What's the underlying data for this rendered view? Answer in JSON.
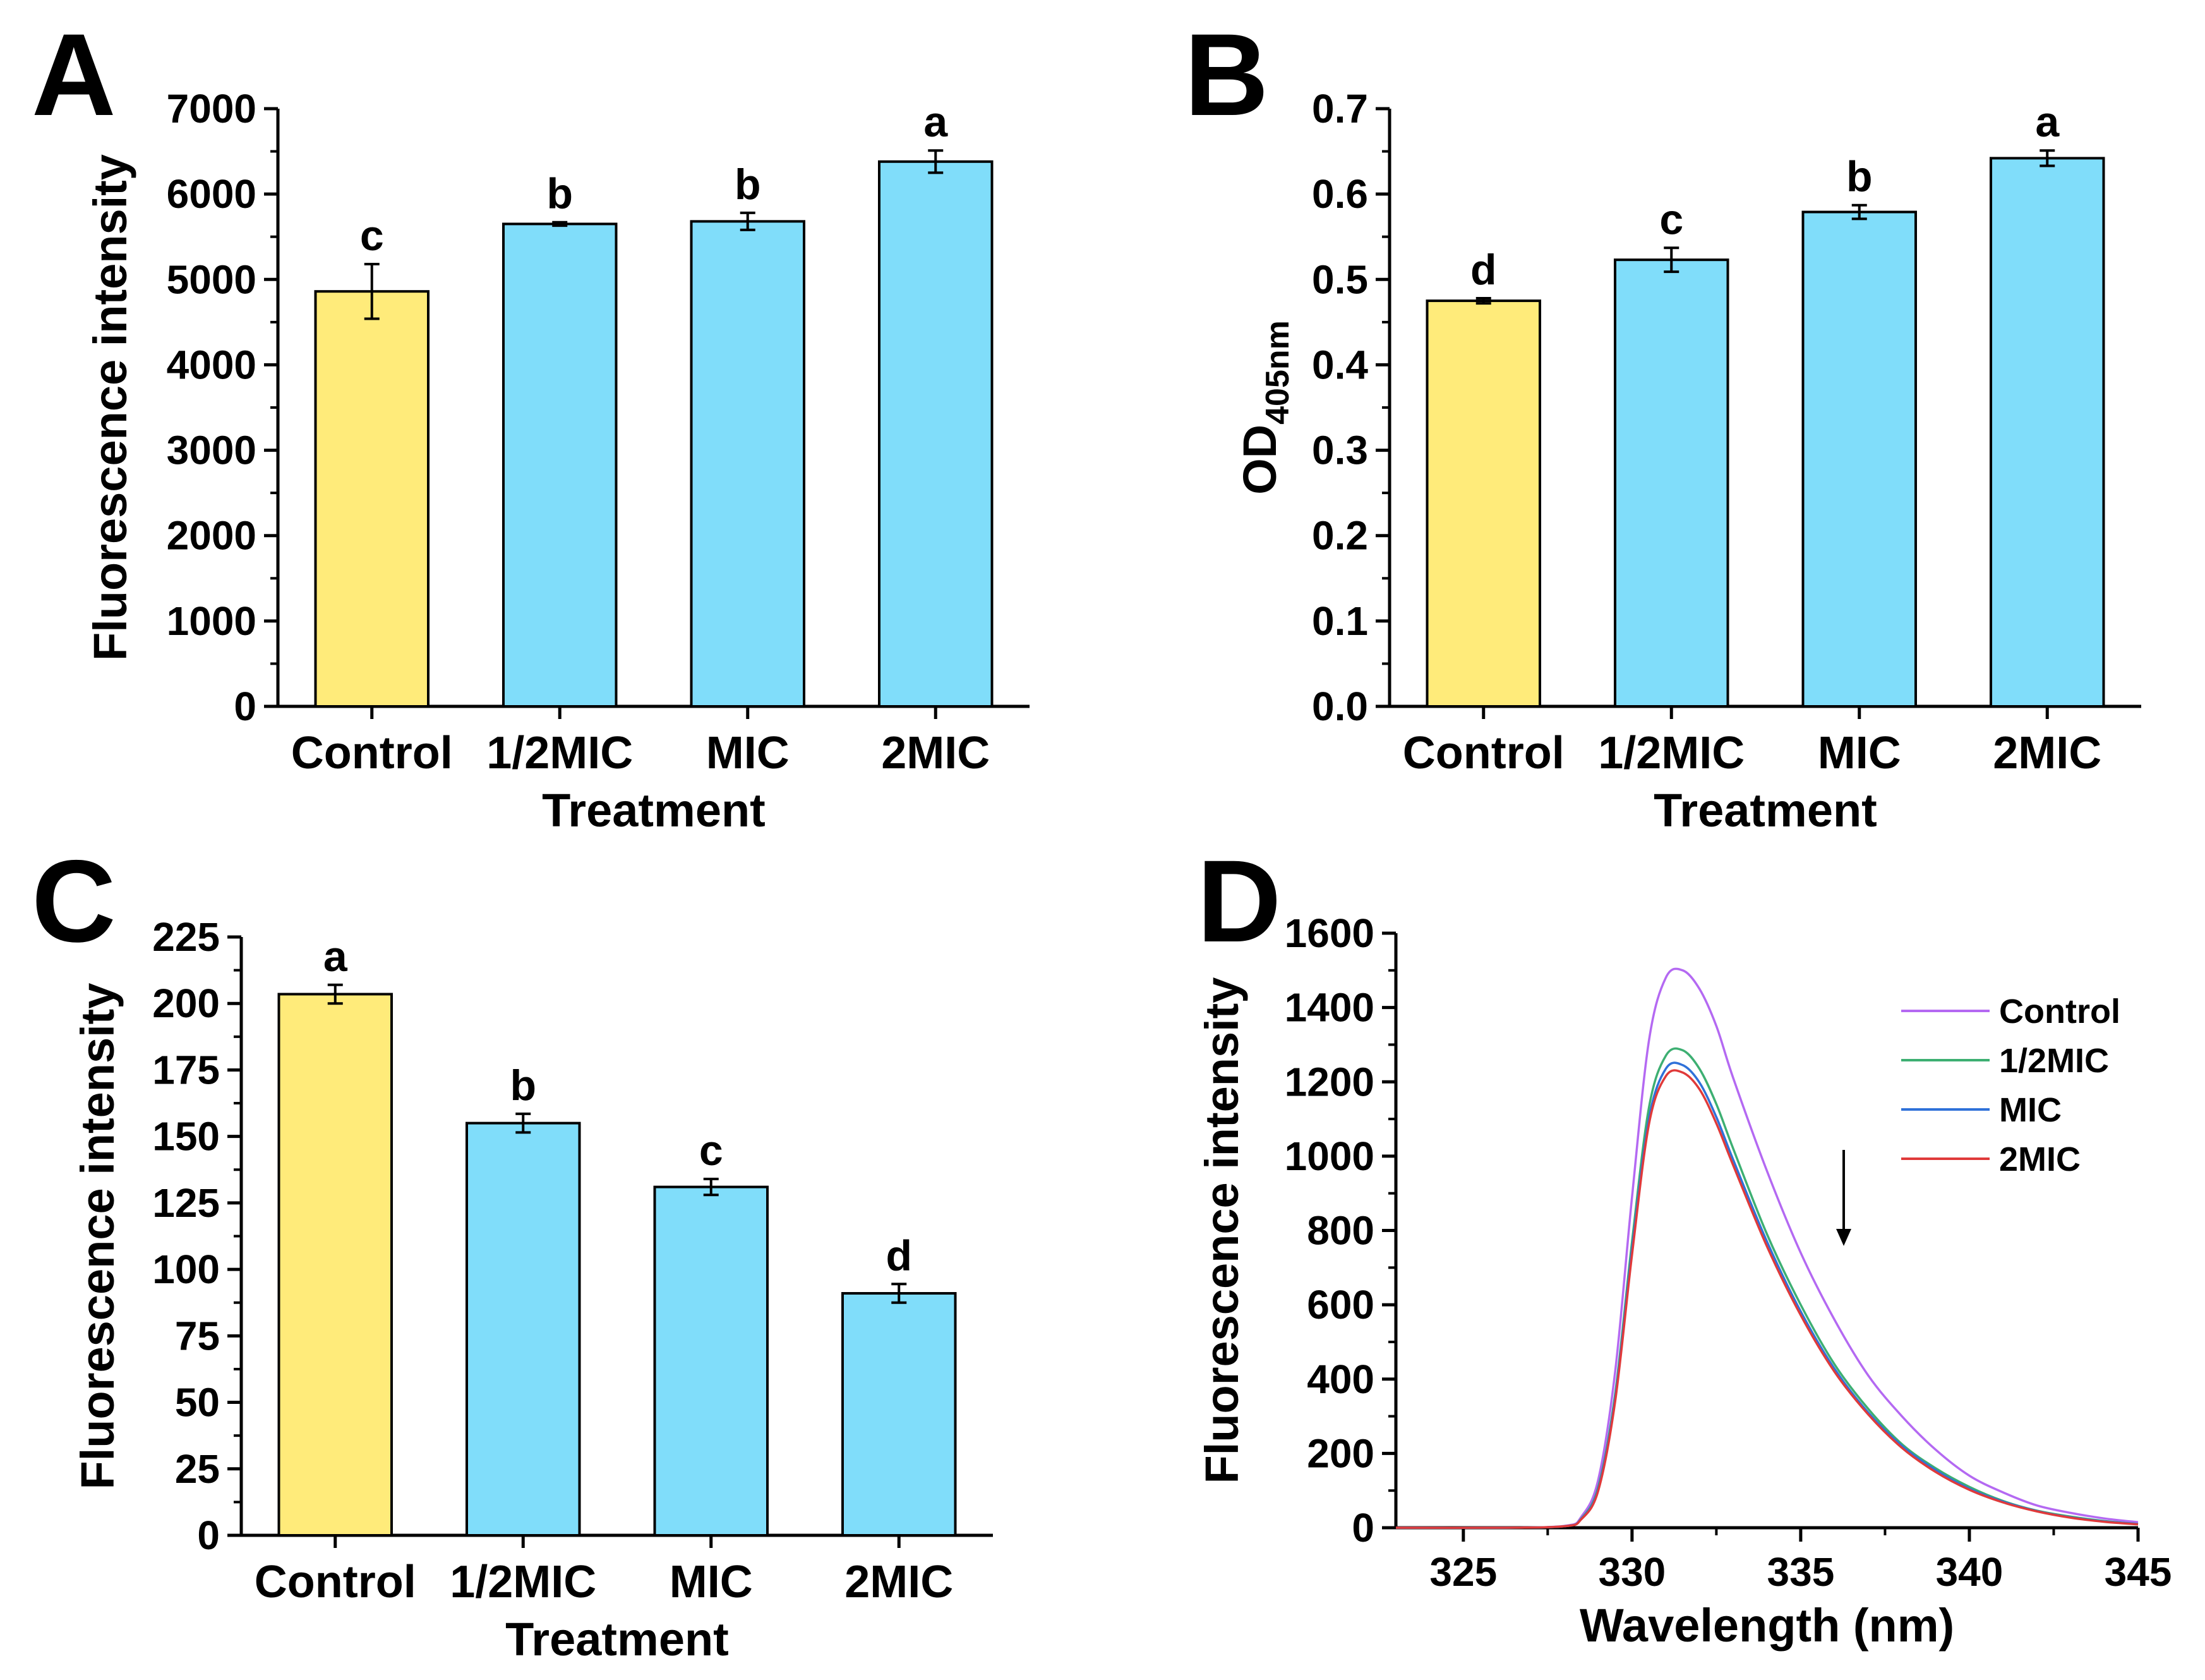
{
  "colors": {
    "control_bar": "#FFEB7A",
    "treatment_bar": "#80DDFA",
    "axis": "#000000",
    "line_control": "#B469F2",
    "line_half_mic": "#3DAF72",
    "line_mic": "#2F71D9",
    "line_2mic": "#E03A3A"
  },
  "chart_data": [
    {
      "panel": "A",
      "type": "bar",
      "categories": [
        "Control",
        "1/2MIC",
        "MIC",
        "2MIC"
      ],
      "values": [
        4860,
        5650,
        5680,
        6380
      ],
      "errors": [
        320,
        20,
        100,
        130
      ],
      "letters": [
        "c",
        "b",
        "b",
        "a"
      ],
      "xlabel": "Treatment",
      "ylabel": "Fluorescence intensity",
      "ylim": [
        0,
        7000
      ],
      "yticks": [
        "0",
        "1000",
        "2000",
        "3000",
        "4000",
        "5000",
        "6000",
        "7000"
      ]
    },
    {
      "panel": "B",
      "type": "bar",
      "categories": [
        "Control",
        "1/2MIC",
        "MIC",
        "2MIC"
      ],
      "values": [
        0.475,
        0.523,
        0.579,
        0.642
      ],
      "errors": [
        0.003,
        0.014,
        0.008,
        0.009
      ],
      "letters": [
        "d",
        "c",
        "b",
        "a"
      ],
      "xlabel": "Treatment",
      "ylabel_main": "OD",
      "ylabel_sub": "405nm",
      "ylim": [
        0,
        0.7
      ],
      "yticks": [
        "0.0",
        "0.1",
        "0.2",
        "0.3",
        "0.4",
        "0.5",
        "0.6",
        "0.7"
      ]
    },
    {
      "panel": "C",
      "type": "bar",
      "categories": [
        "Control",
        "1/2MIC",
        "MIC",
        "2MIC"
      ],
      "values": [
        203.5,
        155,
        131,
        91
      ],
      "errors": [
        3.5,
        3.5,
        3,
        3.5
      ],
      "letters": [
        "a",
        "b",
        "c",
        "d"
      ],
      "xlabel": "Treatment",
      "ylabel": "Fluorescence intensity",
      "ylim": [
        0,
        225
      ],
      "yticks": [
        "0",
        "25",
        "50",
        "75",
        "100",
        "125",
        "150",
        "175",
        "200",
        "225"
      ]
    },
    {
      "panel": "D",
      "type": "line",
      "xlabel": "Wavelength (nm)",
      "ylabel": "Fluorescence intensity",
      "xlim": [
        323,
        345
      ],
      "ylim": [
        0,
        1600
      ],
      "xticks": [
        "325",
        "330",
        "335",
        "340",
        "345"
      ],
      "yticks": [
        "0",
        "200",
        "400",
        "600",
        "800",
        "1000",
        "1200",
        "1400",
        "1600"
      ],
      "x": [
        323,
        326,
        328,
        328.5,
        329,
        329.5,
        330,
        330.5,
        331,
        331.5,
        332,
        332.5,
        333,
        334,
        335,
        336,
        337,
        338,
        339,
        340,
        341,
        342,
        343,
        344,
        345
      ],
      "series": [
        {
          "name": "Control",
          "values": [
            0,
            0,
            5,
            30,
            130,
            420,
            890,
            1310,
            1480,
            1500,
            1450,
            1350,
            1210,
            960,
            740,
            560,
            410,
            300,
            210,
            140,
            95,
            60,
            40,
            25,
            15
          ]
        },
        {
          "name": "1/2MIC",
          "values": [
            0,
            0,
            4,
            25,
            110,
            360,
            770,
            1130,
            1270,
            1285,
            1235,
            1140,
            1020,
            790,
            600,
            440,
            320,
            225,
            160,
            110,
            72,
            46,
            30,
            18,
            10
          ]
        },
        {
          "name": "MIC",
          "values": [
            0,
            0,
            4,
            24,
            105,
            350,
            750,
            1100,
            1235,
            1245,
            1198,
            1105,
            990,
            770,
            582,
            428,
            310,
            220,
            155,
            105,
            70,
            45,
            28,
            17,
            10
          ]
        },
        {
          "name": "2MIC",
          "values": [
            0,
            0,
            4,
            23,
            100,
            340,
            735,
            1085,
            1215,
            1225,
            1180,
            1088,
            975,
            757,
            572,
            420,
            305,
            215,
            150,
            102,
            68,
            44,
            27,
            16,
            9
          ]
        }
      ],
      "legend": [
        "Control",
        "1/2MIC",
        "MIC",
        "2MIC"
      ],
      "legend_position": "top-right",
      "annotation": "downward arrow"
    }
  ]
}
